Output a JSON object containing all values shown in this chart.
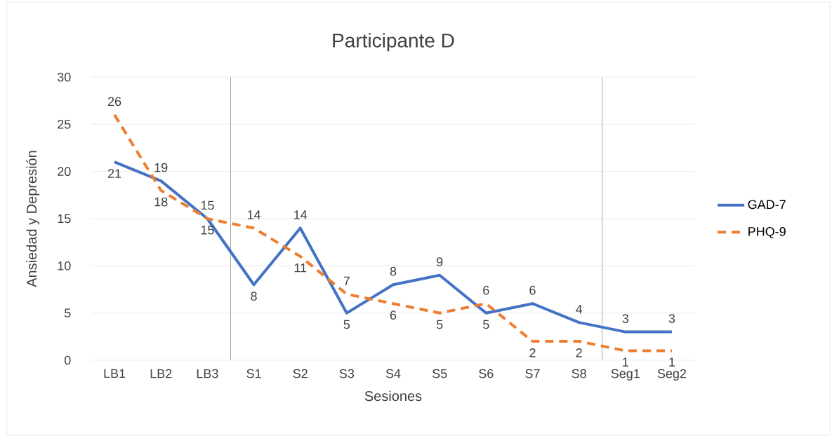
{
  "chart_data": {
    "type": "line",
    "title": "Participante D",
    "xlabel": "Sesiones",
    "ylabel": "Ansiedad y Depresión",
    "categories": [
      "LB1",
      "LB2",
      "LB3",
      "S1",
      "S2",
      "S3",
      "S4",
      "S5",
      "S6",
      "S7",
      "S8",
      "Seg1",
      "Seg2"
    ],
    "series": [
      {
        "name": "GAD-7",
        "color": "#4472c4",
        "line_style": "solid",
        "values": [
          21,
          19,
          15,
          8,
          14,
          5,
          8,
          9,
          5,
          6,
          4,
          3,
          3
        ]
      },
      {
        "name": "PHQ-9",
        "color": "#ed7d31",
        "line_style": "dashed",
        "values": [
          26,
          18,
          15,
          14,
          11,
          7,
          6,
          5,
          6,
          2,
          2,
          1,
          1
        ]
      }
    ],
    "ylim": [
      0,
      30
    ],
    "yticks": [
      0,
      5,
      10,
      15,
      20,
      25,
      30
    ],
    "grid": "y",
    "legend": "right",
    "marker": "none",
    "data_labels": true
  }
}
